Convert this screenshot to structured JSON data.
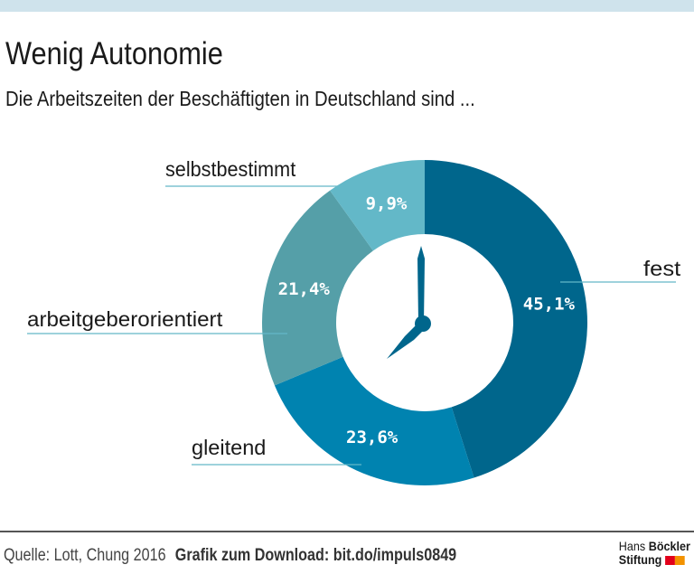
{
  "title": "Wenig Autonomie",
  "subtitle": "Die Arbeitszeiten der Beschäftigten in Deutschland sind ...",
  "chart_data": {
    "type": "pie",
    "variant": "donut",
    "categories": [
      "fest",
      "gleitend",
      "arbeitgeberorientiert",
      "selbstbestimmt"
    ],
    "values": [
      45.1,
      23.6,
      21.4,
      9.9
    ],
    "value_labels": [
      "45,1%",
      "23,6%",
      "21,4%",
      "9,9%"
    ],
    "colors": [
      "#00668c",
      "#0083b0",
      "#559fa8",
      "#63b8c8"
    ],
    "start": "top, clockwise",
    "center_icon": "clock-icon"
  },
  "footer": {
    "source": "Quelle: Lott, Chung 2016",
    "download": "Grafik zum Download: bit.do/impuls0849"
  },
  "logo": {
    "line1_light": "Hans",
    "line1_bold": "Böckler",
    "line2": "Stiftung",
    "colors": [
      "#e2001a",
      "#f39200"
    ]
  }
}
